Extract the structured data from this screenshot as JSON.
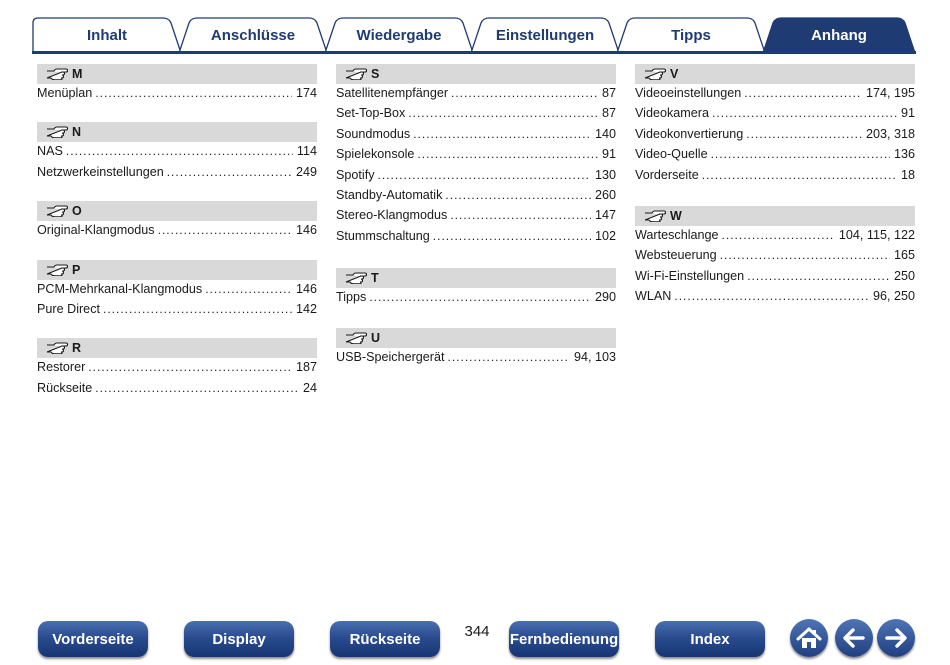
{
  "tabs": [
    {
      "label": "Inhalt"
    },
    {
      "label": "Anschlüsse"
    },
    {
      "label": "Wiedergabe"
    },
    {
      "label": "Einstellungen"
    },
    {
      "label": "Tipps"
    },
    {
      "label": "Anhang"
    }
  ],
  "active_tab": "Anhang",
  "index": {
    "M": {
      "letter": "M",
      "entries": [
        {
          "label": "Menüplan",
          "pages": "174"
        }
      ]
    },
    "N": {
      "letter": "N",
      "entries": [
        {
          "label": "NAS",
          "pages": "114"
        },
        {
          "label": "Netzwerkeinstellungen",
          "pages": "249"
        }
      ]
    },
    "O": {
      "letter": "O",
      "entries": [
        {
          "label": "Original-Klangmodus",
          "pages": "146"
        }
      ]
    },
    "P": {
      "letter": "P",
      "entries": [
        {
          "label": "PCM-Mehrkanal-Klangmodus",
          "pages": "146"
        },
        {
          "label": "Pure Direct",
          "pages": "142"
        }
      ]
    },
    "R": {
      "letter": "R",
      "entries": [
        {
          "label": "Restorer",
          "pages": "187"
        },
        {
          "label": "Rückseite",
          "pages": "24"
        }
      ]
    },
    "S": {
      "letter": "S",
      "entries": [
        {
          "label": "Satellitenempfänger",
          "pages": "87"
        },
        {
          "label": "Set-Top-Box",
          "pages": "87"
        },
        {
          "label": "Soundmodus",
          "pages": "140"
        },
        {
          "label": "Spielekonsole",
          "pages": "91"
        },
        {
          "label": "Spotify",
          "pages": "130"
        },
        {
          "label": "Standby-Automatik",
          "pages": "260"
        },
        {
          "label": "Stereo-Klangmodus",
          "pages": "147"
        },
        {
          "label": "Stummschaltung",
          "pages": "102"
        }
      ]
    },
    "T": {
      "letter": "T",
      "entries": [
        {
          "label": "Tipps",
          "pages": "290"
        }
      ]
    },
    "U": {
      "letter": "U",
      "entries": [
        {
          "label": "USB-Speichergerät",
          "pages": "94, 103"
        }
      ]
    },
    "V": {
      "letter": "V",
      "entries": [
        {
          "label": "Videoeinstellungen",
          "pages": "174, 195"
        },
        {
          "label": "Videokamera",
          "pages": "91"
        },
        {
          "label": "Videokonvertierung",
          "pages": "203, 318"
        },
        {
          "label": "Video-Quelle",
          "pages": "136"
        },
        {
          "label": "Vorderseite",
          "pages": "18"
        }
      ]
    },
    "W": {
      "letter": "W",
      "entries": [
        {
          "label": "Warteschlange",
          "pages": "104, 115, 122"
        },
        {
          "label": "Websteuerung",
          "pages": "165"
        },
        {
          "label": "Wi-Fi-Einstellungen",
          "pages": "250"
        },
        {
          "label": "WLAN",
          "pages": "96, 250"
        }
      ]
    }
  },
  "footer": {
    "buttons": [
      {
        "label": "Vorderseite"
      },
      {
        "label": "Display"
      },
      {
        "label": "Rückseite"
      },
      {
        "label": "Fernbedienung"
      },
      {
        "label": "Index"
      }
    ],
    "page_number": "344",
    "icons": [
      "home-icon",
      "arrow-left-icon",
      "arrow-right-icon"
    ]
  },
  "colors": {
    "accent": "#1f3b73",
    "letter_bar": "#d9d9d9"
  }
}
